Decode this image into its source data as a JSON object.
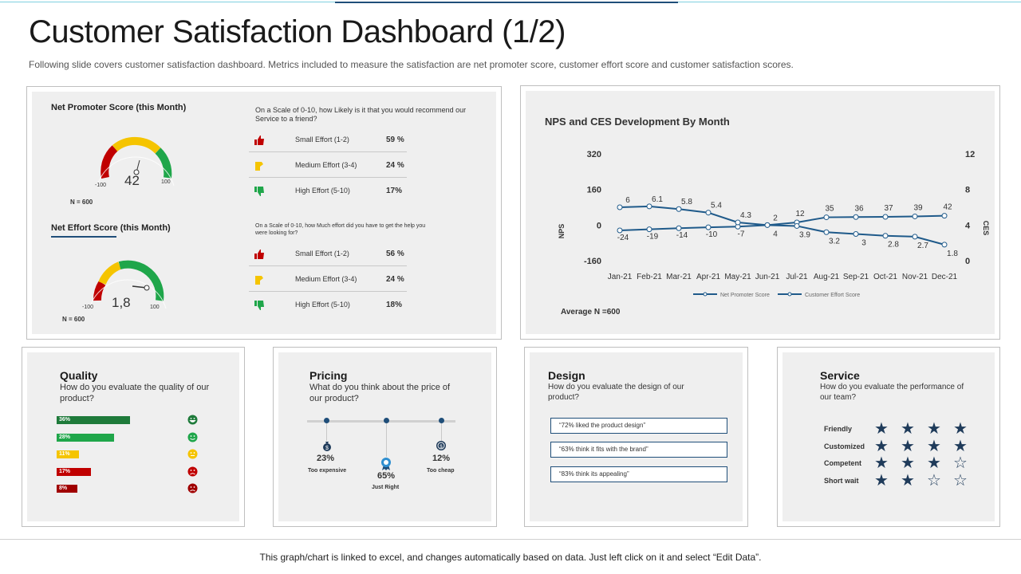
{
  "title": "Customer Satisfaction Dashboard (1/2)",
  "subtitle": "Following slide covers customer satisfaction dashboard. Metrics included to measure the satisfaction are net promoter score, customer effort score and customer satisfaction scores.",
  "colors": {
    "accent": "#1f4e79",
    "red": "#c00000",
    "yellow": "#f5c400",
    "green": "#1fa64a",
    "darkgreen": "#1e7a3a"
  },
  "nps": {
    "title": "Net Promoter Score (this Month)",
    "value": "42",
    "gauge_min": "-100",
    "gauge_max": "100",
    "n": "N = 600",
    "question": "On a Scale of 0-10, how Likely is it that you would recommend our Service to a friend?",
    "rows": [
      {
        "label": "Small Effort (1-2)",
        "pct": "59 %",
        "icon": "thumbs-up-icon"
      },
      {
        "label": "Medium Effort (3-4)",
        "pct": "24 %",
        "icon": "thumbs-sideways-icon"
      },
      {
        "label": "High Effort (5-10)",
        "pct": "17%",
        "icon": "thumbs-down-icon"
      }
    ]
  },
  "nes": {
    "title": "Net Effort Score (this Month)",
    "value": "1,8",
    "gauge_min": "-100",
    "gauge_max": "100",
    "n": "N = 600",
    "question": "On a Scale of 0-10, how Much effort did you have to get the help you were looking for?",
    "rows": [
      {
        "label": "Small Effort (1-2)",
        "pct": "56 %",
        "icon": "thumbs-up-icon"
      },
      {
        "label": "Medium Effort (3-4)",
        "pct": "24 %",
        "icon": "thumbs-sideways-icon"
      },
      {
        "label": "High Effort (5-10)",
        "pct": "18%",
        "icon": "thumbs-down-icon"
      }
    ]
  },
  "chart_data": {
    "type": "line",
    "title": "NPS and CES Development By Month",
    "categories": [
      "Jan-21",
      "Feb-21",
      "Mar-21",
      "Apr-21",
      "May-21",
      "Jun-21",
      "Jul-21",
      "Aug-21",
      "Sep-21",
      "Oct-21",
      "Nov-21",
      "Dec-21"
    ],
    "ylabel": "NPS",
    "y2label": "CES",
    "ylim": [
      -160,
      320
    ],
    "y2lim": [
      0,
      12
    ],
    "yticks": [
      "320",
      "160",
      "0",
      "-160"
    ],
    "y2ticks": [
      "12",
      "8",
      "4",
      "0"
    ],
    "series": [
      {
        "name": "Net Promoter Score",
        "axis": "left",
        "values": [
          -24,
          -19,
          -14,
          -10,
          -7,
          0,
          12,
          35,
          36,
          37,
          39,
          42
        ],
        "labels": [
          "-24",
          "-19",
          "-14",
          "-10",
          "-7",
          "",
          "12",
          "35",
          "36",
          "37",
          "39",
          "42"
        ]
      },
      {
        "name": "Customer Effort Score",
        "axis": "right",
        "values": [
          6,
          6.1,
          5.8,
          5.4,
          4.3,
          4,
          3.9,
          3.2,
          3,
          2.8,
          2.7,
          1.8
        ],
        "labels": [
          "6",
          "6.1",
          "5.8",
          "5.4",
          "4.3",
          "4",
          "3.9",
          "3.2",
          "3",
          "2.8",
          "2.7",
          "1.8"
        ]
      }
    ],
    "extra_label": "2",
    "legend": [
      "Net Promoter Score",
      "Customer Effort Score"
    ],
    "average_n": "Average N =600"
  },
  "quality": {
    "title": "Quality",
    "question": "How do you evaluate the quality of our product?",
    "bars": [
      {
        "label": "36%",
        "value": 36,
        "color": "#1e7a3a",
        "face": "very-happy-face-icon"
      },
      {
        "label": "28%",
        "value": 28,
        "color": "#1fa64a",
        "face": "happy-face-icon"
      },
      {
        "label": "11%",
        "value": 11,
        "color": "#f5c400",
        "face": "neutral-face-icon"
      },
      {
        "label": "17%",
        "value": 17,
        "color": "#c00000",
        "face": "sad-face-icon"
      },
      {
        "label": "8%",
        "value": 8,
        "color": "#a00000",
        "face": "angry-face-icon"
      }
    ]
  },
  "pricing": {
    "title": "Pricing",
    "question": "What do you think about the price of our product?",
    "items": [
      {
        "pct": "23%",
        "label": "Too expensive",
        "icon": "money-bag-icon"
      },
      {
        "pct": "65%",
        "label": "Just Right",
        "icon": "award-ribbon-icon"
      },
      {
        "pct": "12%",
        "label": "Too cheap",
        "icon": "coin-icon"
      }
    ]
  },
  "design": {
    "title": "Design",
    "question": "How do you evaluate the design of our product?",
    "quotes": [
      "“72% liked  the product design”",
      "“63% think it fits with the brand”",
      "“83% think its appealing”"
    ]
  },
  "service": {
    "title": "Service",
    "question": "How do you evaluate the performance of our team?",
    "rows": [
      {
        "label": "Friendly",
        "stars": 4
      },
      {
        "label": "Customized",
        "stars": 4
      },
      {
        "label": "Competent",
        "stars": 3
      },
      {
        "label": "Short wait",
        "stars": 2
      }
    ],
    "max_stars": 4
  },
  "footer": "This graph/chart is linked to excel, and changes automatically based on data. Just left click on it and select “Edit Data”."
}
